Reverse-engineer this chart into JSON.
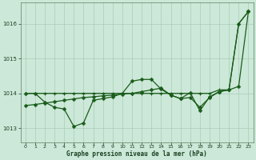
{
  "xlabel": "Graphe pression niveau de la mer (hPa)",
  "bg_color": "#cce8d8",
  "grid_color": "#aaccb8",
  "line_color": "#1a5c1a",
  "xlim": [
    -0.5,
    23.5
  ],
  "ylim": [
    1012.6,
    1016.6
  ],
  "yticks": [
    1013,
    1014,
    1015,
    1016
  ],
  "xticks": [
    0,
    1,
    2,
    3,
    4,
    5,
    6,
    7,
    8,
    9,
    10,
    11,
    12,
    13,
    14,
    15,
    16,
    17,
    18,
    19,
    20,
    21,
    22,
    23
  ],
  "series_flat": [
    1014.0,
    1014.0,
    1014.0,
    1014.0,
    1014.0,
    1014.0,
    1014.0,
    1014.0,
    1014.0,
    1014.0,
    1014.0,
    1014.0,
    1014.0,
    1014.0,
    1014.0,
    1014.0,
    1014.0,
    1014.0,
    1014.0,
    1014.0,
    1014.1,
    1014.1,
    1016.0,
    1016.35
  ],
  "series_zigzag": [
    1014.0,
    1014.0,
    1013.75,
    1013.6,
    1013.55,
    1013.05,
    1013.15,
    1013.8,
    1013.85,
    1013.9,
    1014.0,
    1014.35,
    1014.4,
    1014.4,
    1014.12,
    1013.95,
    1013.85,
    1014.02,
    1013.5,
    1013.9,
    1014.05,
    1014.1,
    1016.0,
    1016.35
  ],
  "series_diagonal": [
    1013.65,
    1013.68,
    1013.72,
    1013.76,
    1013.8,
    1013.84,
    1013.88,
    1013.9,
    1013.93,
    1013.95,
    1013.98,
    1014.0,
    1014.05,
    1014.1,
    1014.15,
    1013.95,
    1013.85,
    1013.88,
    1013.6,
    1013.88,
    1014.05,
    1014.1,
    1014.2,
    1016.35
  ]
}
